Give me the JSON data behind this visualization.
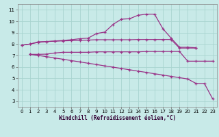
{
  "background_color": "#c8eae8",
  "line_color": "#993388",
  "grid_color": "#a8d4d0",
  "xlabel": "Windchill (Refroidissement éolien,°C)",
  "xlim": [
    -0.5,
    23.5
  ],
  "ylim": [
    2.5,
    11.5
  ],
  "yticks": [
    3,
    4,
    5,
    6,
    7,
    8,
    9,
    10,
    11
  ],
  "xticks": [
    0,
    1,
    2,
    3,
    4,
    5,
    6,
    7,
    8,
    9,
    10,
    11,
    12,
    13,
    14,
    15,
    16,
    17,
    18,
    19,
    20,
    21,
    22,
    23
  ],
  "curve1_x": [
    0,
    1,
    2,
    3,
    4,
    5,
    6,
    7,
    8,
    9,
    10,
    11,
    12,
    13,
    14,
    15,
    16,
    17,
    18,
    19,
    20,
    21,
    22,
    23
  ],
  "curve1_y": [
    7.9,
    8.0,
    8.15,
    8.22,
    8.27,
    8.32,
    8.38,
    8.47,
    8.52,
    8.92,
    9.05,
    9.72,
    10.18,
    10.22,
    10.52,
    10.62,
    10.62,
    9.35,
    8.52,
    7.72,
    7.72,
    7.68,
    null,
    null
  ],
  "curve2_x": [
    0,
    1,
    2,
    3,
    4,
    5,
    6,
    7,
    8,
    9,
    10,
    11,
    12,
    13,
    14,
    15,
    16,
    17,
    18,
    19,
    20,
    21
  ],
  "curve2_y": [
    7.9,
    8.0,
    8.2,
    8.22,
    8.25,
    8.28,
    8.3,
    8.32,
    8.35,
    8.38,
    8.38,
    8.38,
    8.38,
    8.38,
    8.4,
    8.4,
    8.4,
    8.4,
    8.4,
    7.65,
    7.65,
    7.65
  ],
  "curve3_x": [
    1,
    2,
    3,
    4,
    5,
    6,
    7,
    8,
    9,
    10,
    11,
    12,
    13,
    14,
    15,
    16,
    17,
    18,
    19,
    20,
    21,
    22,
    23
  ],
  "curve3_y": [
    7.1,
    7.1,
    7.12,
    7.22,
    7.28,
    7.28,
    7.28,
    7.28,
    7.32,
    7.32,
    7.32,
    7.32,
    7.32,
    7.32,
    7.35,
    7.35,
    7.35,
    7.35,
    7.35,
    6.5,
    6.5,
    6.5,
    6.5
  ],
  "curve4_x": [
    1,
    2,
    3,
    4,
    5,
    6,
    7,
    8,
    9,
    10,
    11,
    12,
    13,
    14,
    15,
    16,
    17,
    18,
    19,
    20,
    21,
    22,
    23
  ],
  "curve4_y": [
    7.1,
    7.0,
    6.9,
    6.78,
    6.67,
    6.55,
    6.44,
    6.32,
    6.21,
    6.09,
    5.98,
    5.86,
    5.75,
    5.63,
    5.52,
    5.4,
    5.29,
    5.17,
    5.06,
    4.94,
    4.55,
    4.55,
    3.2
  ]
}
